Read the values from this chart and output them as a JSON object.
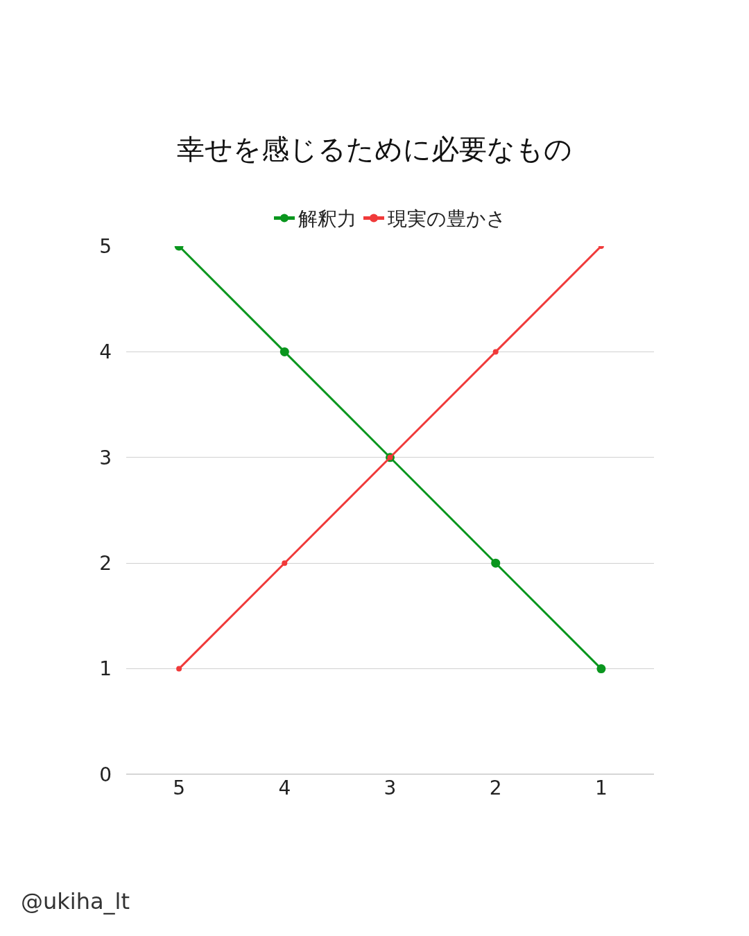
{
  "chart_data": {
    "type": "line",
    "title": "幸せを感じるために必要なもの",
    "categories": [
      "5",
      "4",
      "3",
      "2",
      "1"
    ],
    "series": [
      {
        "name": "解釈力",
        "color": "#0a961e",
        "values": [
          5,
          4,
          3,
          2,
          1
        ]
      },
      {
        "name": "現実の豊かさ",
        "color": "#f03a3a",
        "values": [
          1,
          2,
          3,
          4,
          5
        ]
      }
    ],
    "ylim": [
      0,
      5
    ],
    "yticks": [
      0,
      1,
      2,
      3,
      4,
      5
    ],
    "grid": "y",
    "legend": "top",
    "marker": "circle",
    "line_style": "solid",
    "annotations": [
      "@ukiha_lt"
    ]
  }
}
